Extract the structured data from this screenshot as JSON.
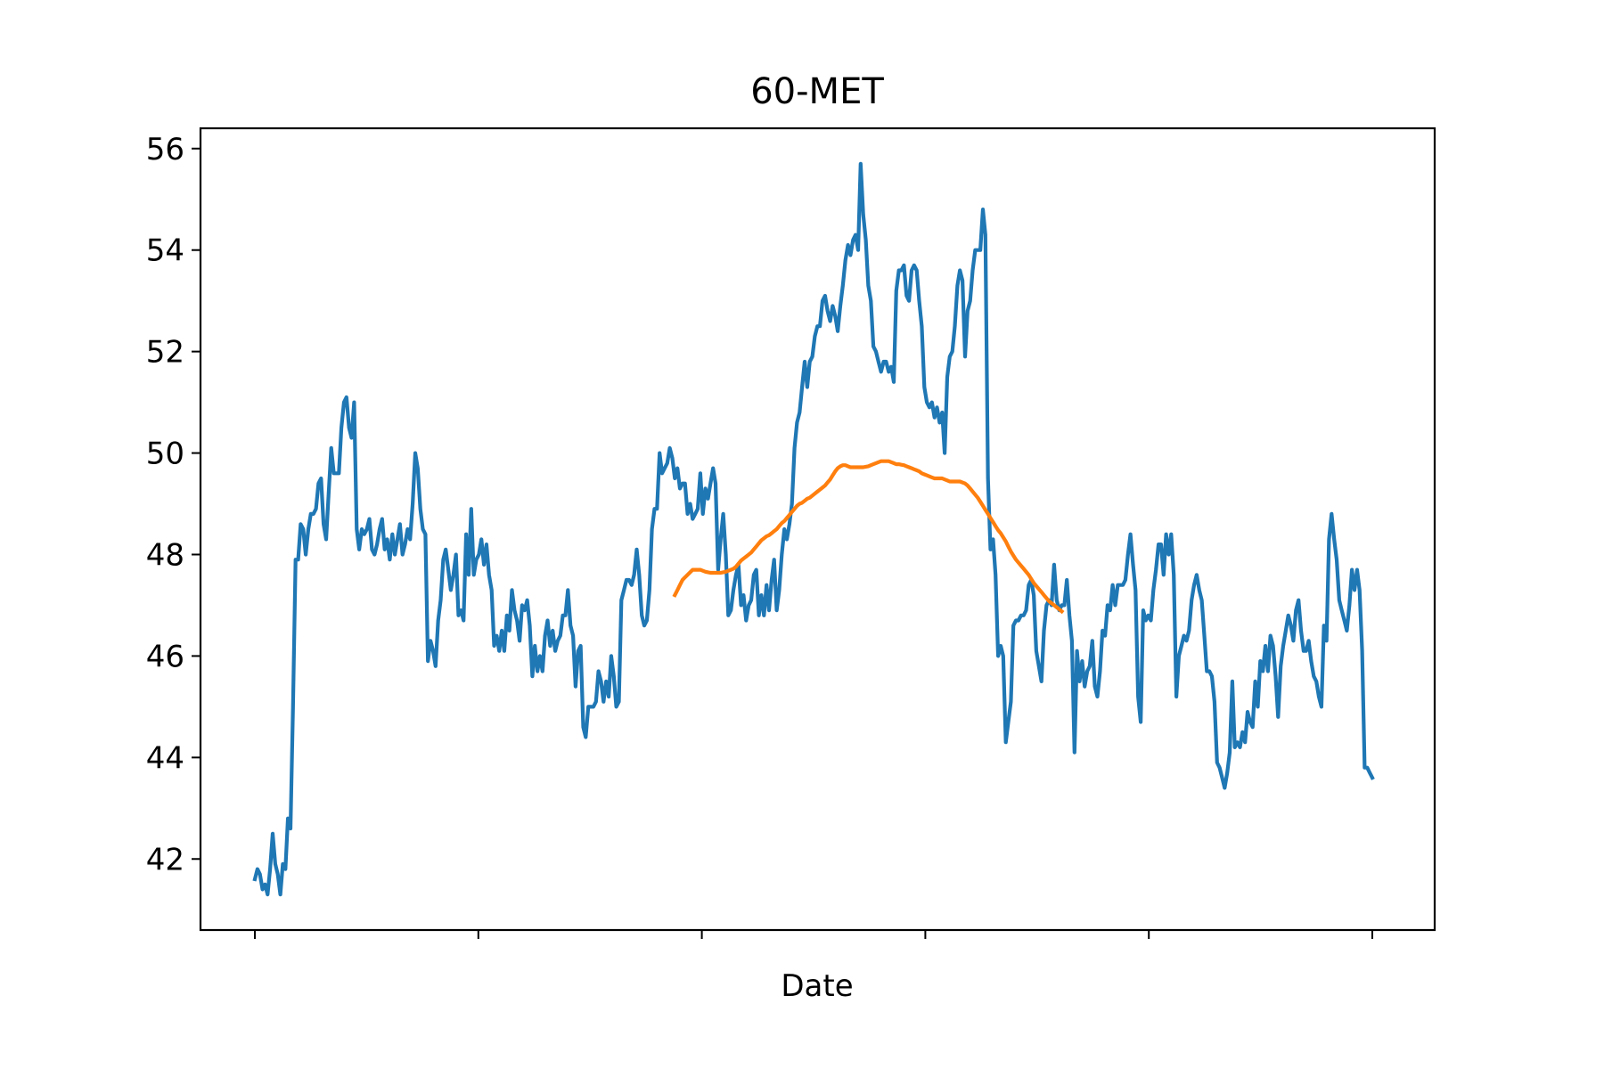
{
  "chart_data": {
    "type": "line",
    "title": "60-MET",
    "xlabel": "Date",
    "ylabel": "",
    "ylim": [
      40.6,
      56.4
    ],
    "y_ticks": [
      42,
      44,
      46,
      48,
      50,
      52,
      54,
      56
    ],
    "y_tick_labels": [
      "42",
      "44",
      "46",
      "48",
      "50",
      "52",
      "54",
      "56"
    ],
    "x_tick_count": 6,
    "x_tick_labels": [
      "",
      "",
      "",
      "",
      "",
      ""
    ],
    "grid": false,
    "series": [
      {
        "color": "#1f77b4",
        "values": [
          41.6,
          41.8,
          41.7,
          41.4,
          41.5,
          41.3,
          41.8,
          42.5,
          41.9,
          41.7,
          41.3,
          41.9,
          41.8,
          42.8,
          42.6,
          45.0,
          47.9,
          47.9,
          48.6,
          48.5,
          48.0,
          48.5,
          48.8,
          48.8,
          48.9,
          49.4,
          49.5,
          48.6,
          48.3,
          49.2,
          50.1,
          49.6,
          49.6,
          49.6,
          50.5,
          51.0,
          51.1,
          50.5,
          50.3,
          51.0,
          48.5,
          48.1,
          48.5,
          48.4,
          48.5,
          48.7,
          48.1,
          48.0,
          48.2,
          48.5,
          48.7,
          48.1,
          48.3,
          47.9,
          48.4,
          48.0,
          48.3,
          48.6,
          48.0,
          48.2,
          48.5,
          48.3,
          49.0,
          50.0,
          49.7,
          48.9,
          48.5,
          48.4,
          45.9,
          46.3,
          46.1,
          45.8,
          46.7,
          47.1,
          47.9,
          48.1,
          47.7,
          47.3,
          47.6,
          48.0,
          46.8,
          46.9,
          46.7,
          48.4,
          47.6,
          48.9,
          47.6,
          47.9,
          48.0,
          48.3,
          47.8,
          48.2,
          47.6,
          47.3,
          46.2,
          46.4,
          46.1,
          46.5,
          46.1,
          46.8,
          46.5,
          47.3,
          46.9,
          46.7,
          46.3,
          47.0,
          46.9,
          47.1,
          46.6,
          45.6,
          46.2,
          45.7,
          46.0,
          45.7,
          46.4,
          46.7,
          46.2,
          46.5,
          46.1,
          46.3,
          46.4,
          46.8,
          46.8,
          47.3,
          46.6,
          46.4,
          45.4,
          46.1,
          46.2,
          44.6,
          44.4,
          45.0,
          45.0,
          45.0,
          45.1,
          45.7,
          45.5,
          45.1,
          45.5,
          45.2,
          46.0,
          45.6,
          45.0,
          45.1,
          47.1,
          47.3,
          47.5,
          47.5,
          47.4,
          47.6,
          48.1,
          47.6,
          46.8,
          46.6,
          46.7,
          47.3,
          48.5,
          48.9,
          48.9,
          50.0,
          49.6,
          49.7,
          49.8,
          50.1,
          49.9,
          49.5,
          49.7,
          49.3,
          49.4,
          49.4,
          48.8,
          49.0,
          48.7,
          48.8,
          48.9,
          49.6,
          48.8,
          49.3,
          49.1,
          49.4,
          49.7,
          49.4,
          47.7,
          48.3,
          48.8,
          48.0,
          46.8,
          46.9,
          47.3,
          47.6,
          47.8,
          47.0,
          47.2,
          46.7,
          47.0,
          47.1,
          47.6,
          47.7,
          46.8,
          47.2,
          46.8,
          47.4,
          46.9,
          47.5,
          47.9,
          46.9,
          47.3,
          48.0,
          48.5,
          48.3,
          48.6,
          49.0,
          50.1,
          50.6,
          50.8,
          51.3,
          51.8,
          51.3,
          51.8,
          51.9,
          52.3,
          52.5,
          52.5,
          53.0,
          53.1,
          52.8,
          52.6,
          52.9,
          52.7,
          52.4,
          52.9,
          53.3,
          53.8,
          54.1,
          53.9,
          54.2,
          54.3,
          54.0,
          55.7,
          54.7,
          54.2,
          53.3,
          53.0,
          52.1,
          52.0,
          51.8,
          51.6,
          51.8,
          51.8,
          51.6,
          51.7,
          51.4,
          53.2,
          53.6,
          53.6,
          53.7,
          53.1,
          53.0,
          53.6,
          53.7,
          53.6,
          53.0,
          52.5,
          51.3,
          51.0,
          50.9,
          51.0,
          50.7,
          50.9,
          50.6,
          50.8,
          50.0,
          51.5,
          51.9,
          52.0,
          52.5,
          53.3,
          53.6,
          53.4,
          51.9,
          52.8,
          53.0,
          53.6,
          54.0,
          54.0,
          54.0,
          54.8,
          54.3,
          49.5,
          48.1,
          48.3,
          47.6,
          46.0,
          46.2,
          46.0,
          44.3,
          44.7,
          45.1,
          46.6,
          46.7,
          46.7,
          46.8,
          46.8,
          46.9,
          47.4,
          47.5,
          47.2,
          46.1,
          45.8,
          45.5,
          46.5,
          47.0,
          47.1,
          47.0,
          47.8,
          47.1,
          46.9,
          47.0,
          47.0,
          47.5,
          46.8,
          46.3,
          44.1,
          46.1,
          45.5,
          45.9,
          45.4,
          45.7,
          45.8,
          46.3,
          45.4,
          45.2,
          45.7,
          46.5,
          46.4,
          47.0,
          46.9,
          47.4,
          47.0,
          47.4,
          47.4,
          47.4,
          47.5,
          48.0,
          48.4,
          47.8,
          47.3,
          45.2,
          44.7,
          46.9,
          46.7,
          46.8,
          46.7,
          47.3,
          47.7,
          48.2,
          48.2,
          47.6,
          48.4,
          48.0,
          48.4,
          47.6,
          45.2,
          46.0,
          46.2,
          46.4,
          46.3,
          46.5,
          47.1,
          47.4,
          47.6,
          47.3,
          47.1,
          46.4,
          45.7,
          45.7,
          45.6,
          45.1,
          43.9,
          43.8,
          43.6,
          43.4,
          43.7,
          44.1,
          45.5,
          44.2,
          44.3,
          44.2,
          44.5,
          44.3,
          44.9,
          44.7,
          44.6,
          45.5,
          45.0,
          45.9,
          45.7,
          46.2,
          45.7,
          46.4,
          46.2,
          45.6,
          44.8,
          45.8,
          46.2,
          46.5,
          46.8,
          46.6,
          46.3,
          46.9,
          47.1,
          46.5,
          46.1,
          46.1,
          46.3,
          45.9,
          45.6,
          45.5,
          45.2,
          45.0,
          46.6,
          46.3,
          48.3,
          48.8,
          48.3,
          47.9,
          47.1,
          46.9,
          46.7,
          46.5,
          47.0,
          47.7,
          47.3,
          47.7,
          47.3,
          46.1,
          43.8,
          43.8,
          43.7,
          43.6
        ]
      },
      {
        "color": "#ff7f0e",
        "start_index": 165,
        "values": [
          47.2,
          47.3,
          47.4,
          47.5,
          47.55,
          47.6,
          47.65,
          47.7,
          47.7,
          47.7,
          47.7,
          47.68,
          47.66,
          47.65,
          47.64,
          47.64,
          47.64,
          47.64,
          47.64,
          47.65,
          47.66,
          47.68,
          47.7,
          47.72,
          47.76,
          47.82,
          47.88,
          47.92,
          47.96,
          48.0,
          48.04,
          48.1,
          48.16,
          48.22,
          48.28,
          48.32,
          48.36,
          48.38,
          48.42,
          48.46,
          48.5,
          48.56,
          48.62,
          48.66,
          48.72,
          48.78,
          48.84,
          48.9,
          48.96,
          49.0,
          49.02,
          49.06,
          49.1,
          49.12,
          49.16,
          49.2,
          49.24,
          49.28,
          49.32,
          49.36,
          49.42,
          49.48,
          49.56,
          49.64,
          49.7,
          49.74,
          49.76,
          49.76,
          49.74,
          49.72,
          49.72,
          49.72,
          49.72,
          49.72,
          49.72,
          49.73,
          49.74,
          49.76,
          49.78,
          49.8,
          49.82,
          49.84,
          49.84,
          49.84,
          49.84,
          49.82,
          49.8,
          49.78,
          49.78,
          49.77,
          49.76,
          49.74,
          49.72,
          49.7,
          49.68,
          49.66,
          49.64,
          49.6,
          49.58,
          49.56,
          49.54,
          49.52,
          49.5,
          49.5,
          49.5,
          49.5,
          49.48,
          49.46,
          49.44,
          49.44,
          49.44,
          49.44,
          49.44,
          49.42,
          49.4,
          49.36,
          49.3,
          49.24,
          49.18,
          49.12,
          49.04,
          48.96,
          48.88,
          48.8,
          48.72,
          48.64,
          48.56,
          48.48,
          48.42,
          48.34,
          48.26,
          48.16,
          48.06,
          47.98,
          47.9,
          47.84,
          47.78,
          47.72,
          47.66,
          47.6,
          47.52,
          47.44,
          47.38,
          47.32,
          47.26,
          47.2,
          47.14,
          47.08,
          47.04,
          47.0,
          46.96,
          46.92,
          46.88
        ]
      }
    ]
  }
}
